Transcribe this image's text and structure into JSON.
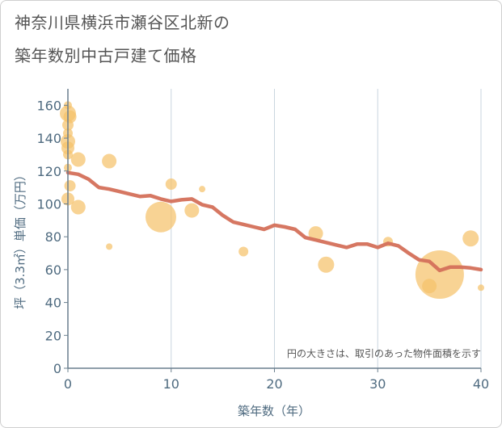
{
  "title_line1": "神奈川県横浜市瀬谷区北新の",
  "title_line2": "築年数別中古戸建て価格",
  "chart_data": {
    "type": "scatter",
    "title": "神奈川県横浜市瀬谷区北新の築年数別中古戸建て価格",
    "xlabel": "築年数（年）",
    "ylabel": "坪（3.3㎡）単価（万円）",
    "xlim": [
      0,
      40
    ],
    "ylim": [
      0,
      170
    ],
    "xticks": [
      0,
      10,
      20,
      30,
      40
    ],
    "yticks": [
      0,
      20,
      40,
      60,
      80,
      100,
      120,
      140,
      160
    ],
    "grid": "vertical",
    "annotation": "円の大きさは、取引のあった物件面積を示す",
    "colors": {
      "bubble": "#f5c26b",
      "line": "#d4705a",
      "grid": "#c9d6df",
      "axis": "#6a7f8e",
      "text": "#4f6b80"
    },
    "bubbles": [
      {
        "x": 0,
        "y": 160,
        "size": 5
      },
      {
        "x": 0,
        "y": 155,
        "size": 10
      },
      {
        "x": 0.2,
        "y": 153,
        "size": 8
      },
      {
        "x": 0,
        "y": 148,
        "size": 7
      },
      {
        "x": 0,
        "y": 143,
        "size": 6
      },
      {
        "x": 0,
        "y": 138,
        "size": 9
      },
      {
        "x": 0,
        "y": 134,
        "size": 8
      },
      {
        "x": 0,
        "y": 130,
        "size": 6
      },
      {
        "x": 0,
        "y": 122,
        "size": 5
      },
      {
        "x": 0.2,
        "y": 111,
        "size": 7
      },
      {
        "x": 0,
        "y": 103,
        "size": 8
      },
      {
        "x": 1,
        "y": 127,
        "size": 9
      },
      {
        "x": 1,
        "y": 98,
        "size": 9
      },
      {
        "x": 4,
        "y": 126,
        "size": 9
      },
      {
        "x": 4,
        "y": 74,
        "size": 4
      },
      {
        "x": 9,
        "y": 92,
        "size": 19
      },
      {
        "x": 10,
        "y": 112,
        "size": 7
      },
      {
        "x": 12,
        "y": 96,
        "size": 9
      },
      {
        "x": 13,
        "y": 109,
        "size": 4
      },
      {
        "x": 17,
        "y": 71,
        "size": 6
      },
      {
        "x": 24,
        "y": 82,
        "size": 9
      },
      {
        "x": 25,
        "y": 63,
        "size": 10
      },
      {
        "x": 31,
        "y": 77,
        "size": 6
      },
      {
        "x": 35,
        "y": 50,
        "size": 9
      },
      {
        "x": 36,
        "y": 57,
        "size": 30
      },
      {
        "x": 39,
        "y": 79,
        "size": 10
      },
      {
        "x": 40,
        "y": 49,
        "size": 4
      }
    ],
    "trend": {
      "x": [
        0,
        1,
        2,
        3,
        4,
        5,
        6,
        7,
        8,
        9,
        10,
        11,
        12,
        13,
        14,
        15,
        16,
        17,
        18,
        19,
        20,
        21,
        22,
        23,
        24,
        25,
        26,
        27,
        28,
        29,
        30,
        31,
        32,
        33,
        34,
        35,
        36,
        37,
        38,
        39,
        40
      ],
      "y": [
        119,
        118,
        115,
        110,
        109,
        107.5,
        106,
        104.5,
        105,
        103,
        101.5,
        102.5,
        103,
        99.5,
        98,
        93,
        89,
        87.5,
        86,
        84.5,
        87,
        86,
        84.5,
        79.5,
        78,
        76.5,
        75,
        73.5,
        75.5,
        75.5,
        73.5,
        76,
        74.5,
        70,
        66,
        65,
        59.5,
        61.5,
        61.5,
        61,
        60
      ]
    }
  }
}
